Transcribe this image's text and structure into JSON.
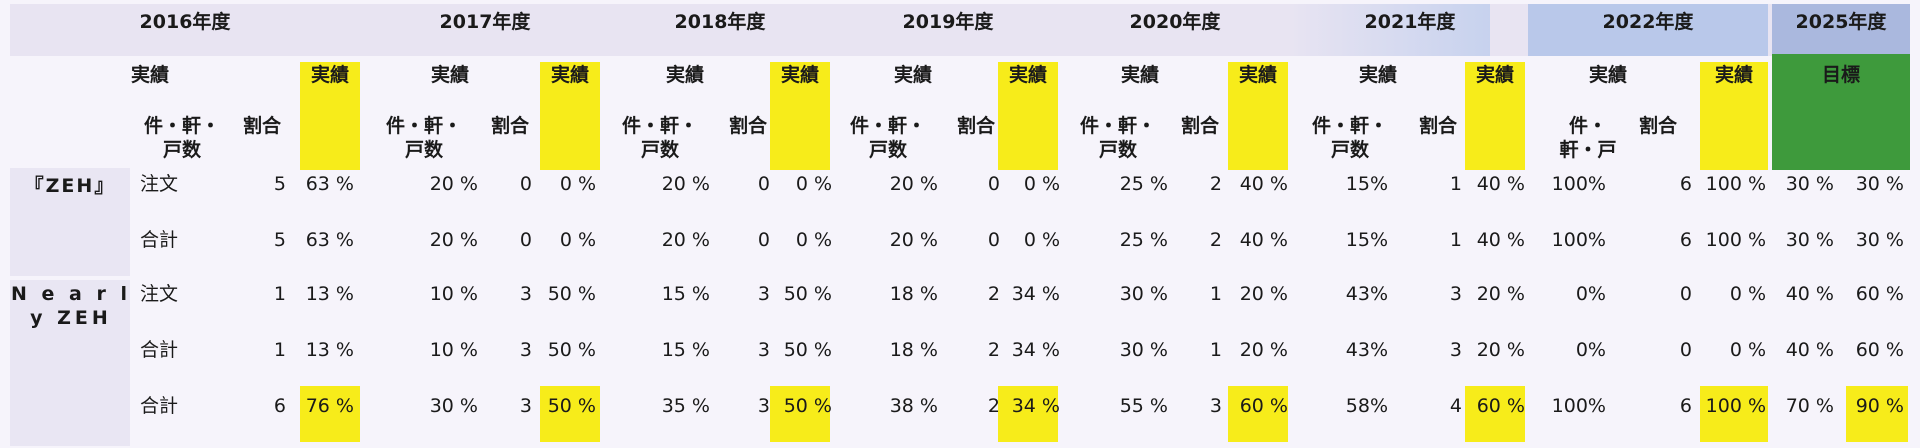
{
  "years": [
    "2016年度",
    "2017年度",
    "2018年度",
    "2019年度",
    "2020年度",
    "2021年度",
    "2022年度",
    "2025年度"
  ],
  "header": {
    "jisseki": "実績",
    "mokuhyo": "目標",
    "count_unit_a": "件・軒・",
    "count_unit_b": "戸数",
    "count_unit_2022_a": "件・",
    "count_unit_2022_b": "軒・戸",
    "ratio": "割合"
  },
  "categories": {
    "zeh": "『ZEH』",
    "nearly_a": "N e a r l",
    "nearly_b": "y ZEH"
  },
  "row_labels": [
    "注文",
    "合計",
    "注文",
    "合計",
    "合計"
  ],
  "rows": [
    [
      "5",
      "63 %",
      "20 %",
      "0",
      "0 %",
      "20 %",
      "0",
      "0 %",
      "20 %",
      "0",
      "0 %",
      "25 %",
      "2",
      "40 %",
      "15%",
      "1",
      "40 %",
      "100%",
      "6",
      "100 %",
      "30 %",
      "30 %"
    ],
    [
      "5",
      "63 %",
      "20 %",
      "0",
      "0 %",
      "20 %",
      "0",
      "0 %",
      "20 %",
      "0",
      "0 %",
      "25 %",
      "2",
      "40 %",
      "15%",
      "1",
      "40 %",
      "100%",
      "6",
      "100 %",
      "30 %",
      "30 %"
    ],
    [
      "1",
      "13 %",
      "10 %",
      "3",
      "50 %",
      "15 %",
      "3",
      "50 %",
      "18 %",
      "2",
      "34 %",
      "30 %",
      "1",
      "20 %",
      "43%",
      "3",
      "20 %",
      "0%",
      "0",
      "0 %",
      "40 %",
      "60 %"
    ],
    [
      "1",
      "13 %",
      "10 %",
      "3",
      "50 %",
      "15 %",
      "3",
      "50 %",
      "18 %",
      "2",
      "34 %",
      "30 %",
      "1",
      "20 %",
      "43%",
      "3",
      "20 %",
      "0%",
      "0",
      "0 %",
      "40 %",
      "60 %"
    ],
    [
      "6",
      "76 %",
      "30 %",
      "3",
      "50 %",
      "35 %",
      "3",
      "50 %",
      "38 %",
      "2",
      "34 %",
      "55 %",
      "3",
      "60 %",
      "58%",
      "4",
      "60 %",
      "100%",
      "6",
      "100 %",
      "70 %",
      "90 %"
    ]
  ],
  "colors": {
    "highlight": "#f7ec1a",
    "target_green": "#3e9a3c",
    "year_band": "#e8e4f2",
    "year_band_blue": "#b9c8ea",
    "label_band": "#e9e6f3"
  }
}
